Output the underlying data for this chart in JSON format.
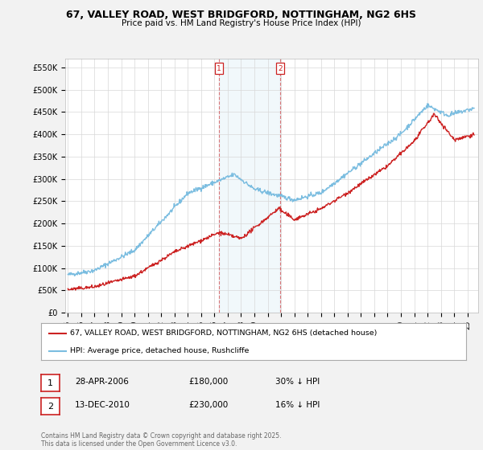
{
  "title": "67, VALLEY ROAD, WEST BRIDGFORD, NOTTINGHAM, NG2 6HS",
  "subtitle": "Price paid vs. HM Land Registry's House Price Index (HPI)",
  "ylabel_ticks": [
    "£0",
    "£50K",
    "£100K",
    "£150K",
    "£200K",
    "£250K",
    "£300K",
    "£350K",
    "£400K",
    "£450K",
    "£500K",
    "£550K"
  ],
  "ytick_values": [
    0,
    50000,
    100000,
    150000,
    200000,
    250000,
    300000,
    350000,
    400000,
    450000,
    500000,
    550000
  ],
  "ylim": [
    0,
    570000
  ],
  "xlim_start": 1994.8,
  "xlim_end": 2025.8,
  "hpi_color": "#7bbde0",
  "price_color": "#cc2222",
  "marker1_date": 2006.32,
  "marker2_date": 2010.95,
  "legend_line1": "67, VALLEY ROAD, WEST BRIDGFORD, NOTTINGHAM, NG2 6HS (detached house)",
  "legend_line2": "HPI: Average price, detached house, Rushcliffe",
  "table_row1": [
    "1",
    "28-APR-2006",
    "£180,000",
    "30% ↓ HPI"
  ],
  "table_row2": [
    "2",
    "13-DEC-2010",
    "£230,000",
    "16% ↓ HPI"
  ],
  "footer": "Contains HM Land Registry data © Crown copyright and database right 2025.\nThis data is licensed under the Open Government Licence v3.0.",
  "background_color": "#f2f2f2",
  "plot_bg_color": "#ffffff"
}
